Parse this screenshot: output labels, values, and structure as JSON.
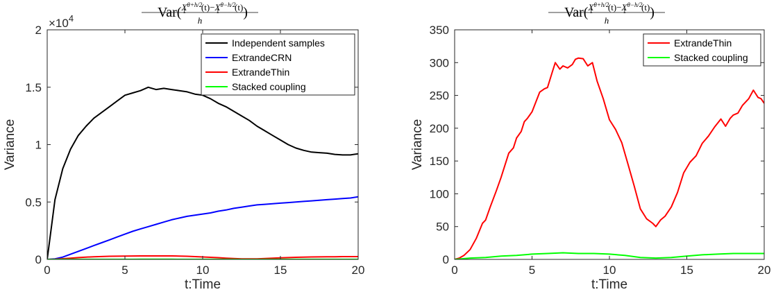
{
  "chart_data": [
    {
      "type": "line",
      "title": {
        "func": "Var",
        "open": "(",
        "num_a": "X",
        "num_a_sub": "1",
        "num_a_sup": "θ+h/2",
        "num_a_arg": "(t)",
        "minus": "−",
        "num_b": "X",
        "num_b_sub": "1",
        "num_b_sup": "θ−h/2",
        "num_b_arg": "(t)",
        "den": "h",
        "close": ")"
      },
      "xlabel": "t:Time",
      "ylabel": "Variance",
      "xlim": [
        0,
        20
      ],
      "ylim": [
        0,
        20000
      ],
      "xticks": [
        0,
        5,
        10,
        15,
        20
      ],
      "xtick_labels": [
        "0",
        "5",
        "10",
        "15",
        "20"
      ],
      "yticks": [
        0,
        5000,
        10000,
        15000,
        20000
      ],
      "ytick_labels": [
        "0",
        "0.5",
        "1",
        "1.5",
        "2"
      ],
      "y_exponent": {
        "base": "×10",
        "power": "4"
      },
      "legend_position": "top-right",
      "x": [
        0,
        0.5,
        1,
        1.5,
        2,
        2.5,
        3,
        3.5,
        4,
        4.5,
        5,
        5.5,
        6,
        6.5,
        7,
        7.5,
        8,
        8.5,
        9,
        9.5,
        10,
        10.5,
        11,
        11.5,
        12,
        12.5,
        13,
        13.5,
        14,
        14.5,
        15,
        15.5,
        16,
        16.5,
        17,
        17.5,
        18,
        18.5,
        19,
        19.5,
        20
      ],
      "series": [
        {
          "name": "Independent samples",
          "color": "#000000",
          "values": [
            0,
            5200,
            7900,
            9600,
            10800,
            11600,
            12300,
            12800,
            13300,
            13800,
            14300,
            14500,
            14700,
            15000,
            14800,
            14900,
            14800,
            14700,
            14600,
            14400,
            14300,
            14000,
            13600,
            13300,
            12900,
            12500,
            12100,
            11600,
            11200,
            10800,
            10400,
            10000,
            9700,
            9500,
            9350,
            9300,
            9250,
            9150,
            9100,
            9100,
            9200
          ]
        },
        {
          "name": "ExtrandeCRN",
          "color": "#0000ff",
          "values": [
            0,
            50,
            200,
            450,
            700,
            950,
            1200,
            1450,
            1700,
            1950,
            2200,
            2450,
            2650,
            2850,
            3050,
            3250,
            3450,
            3600,
            3750,
            3850,
            3950,
            4050,
            4200,
            4300,
            4450,
            4550,
            4650,
            4750,
            4800,
            4850,
            4900,
            4950,
            5000,
            5050,
            5100,
            5150,
            5200,
            5250,
            5300,
            5350,
            5450
          ]
        },
        {
          "name": "ExtrandeThin",
          "color": "#ff0000",
          "values": [
            0,
            20,
            60,
            110,
            160,
            200,
            230,
            250,
            270,
            280,
            290,
            295,
            300,
            305,
            305,
            300,
            300,
            290,
            270,
            240,
            210,
            180,
            150,
            110,
            70,
            50,
            40,
            50,
            70,
            110,
            140,
            160,
            180,
            200,
            210,
            220,
            225,
            230,
            240,
            240,
            240
          ]
        },
        {
          "name": "Stacked coupling",
          "color": "#00ff00",
          "values": [
            0,
            2,
            4,
            5,
            6,
            7,
            8,
            8,
            9,
            9,
            9,
            9,
            10,
            10,
            10,
            10,
            10,
            9,
            9,
            8,
            8,
            7,
            6,
            5,
            4,
            3,
            3,
            3,
            4,
            5,
            6,
            7,
            8,
            8,
            9,
            9,
            9,
            9,
            9,
            9,
            8
          ]
        }
      ]
    },
    {
      "type": "line",
      "title": {
        "func": "Var",
        "open": "(",
        "num_a": "X",
        "num_a_sub": "1",
        "num_a_sup": "θ+h/2",
        "num_a_arg": "(t)",
        "minus": "−",
        "num_b": "X",
        "num_b_sub": "1",
        "num_b_sup": "θ−h/2",
        "num_b_arg": "(t)",
        "den": "h",
        "close": ")"
      },
      "xlabel": "t:Time",
      "ylabel": "Variance",
      "xlim": [
        0,
        20
      ],
      "ylim": [
        0,
        350
      ],
      "xticks": [
        0,
        5,
        10,
        15,
        20
      ],
      "xtick_labels": [
        "0",
        "5",
        "10",
        "15",
        "20"
      ],
      "yticks": [
        0,
        50,
        100,
        150,
        200,
        250,
        300,
        350
      ],
      "ytick_labels": [
        "0",
        "50",
        "100",
        "150",
        "200",
        "250",
        "300",
        "350"
      ],
      "legend_position": "top-right",
      "series": [
        {
          "name": "ExtrandeThin",
          "color": "#ff0000",
          "x": [
            0,
            0.3,
            0.6,
            1,
            1.4,
            1.8,
            2,
            2.3,
            2.7,
            3,
            3.5,
            3.8,
            4,
            4.3,
            4.5,
            4.7,
            5,
            5.5,
            5.8,
            6,
            6.3,
            6.5,
            6.8,
            7,
            7.3,
            7.6,
            7.8,
            8,
            8.3,
            8.6,
            8.9,
            9.2,
            9.6,
            10,
            10.4,
            10.8,
            11.2,
            11.6,
            12,
            12.4,
            12.8,
            13,
            13.3,
            13.6,
            14,
            14.4,
            14.8,
            15.2,
            15.6,
            16,
            16.4,
            16.8,
            17.2,
            17.5,
            17.8,
            18,
            18.3,
            18.6,
            19,
            19.3,
            19.6,
            19.8,
            20
          ],
          "y": [
            0,
            2,
            6,
            15,
            32,
            55,
            60,
            80,
            105,
            125,
            162,
            170,
            185,
            195,
            210,
            215,
            225,
            255,
            260,
            262,
            285,
            300,
            290,
            295,
            292,
            297,
            305,
            307,
            306,
            295,
            300,
            272,
            245,
            213,
            198,
            178,
            145,
            112,
            77,
            62,
            55,
            50,
            60,
            66,
            80,
            102,
            132,
            148,
            158,
            177,
            188,
            202,
            214,
            203,
            215,
            220,
            223,
            235,
            245,
            258,
            247,
            245,
            238
          ]
        },
        {
          "name": "Stacked coupling",
          "color": "#00ff00",
          "x": [
            0,
            1,
            2,
            3,
            4,
            5,
            6,
            7,
            8,
            9,
            10,
            11,
            12,
            13,
            14,
            15,
            16,
            17,
            18,
            19,
            20
          ],
          "y": [
            0,
            2,
            3,
            5,
            6,
            8,
            9,
            10,
            9,
            9,
            8,
            6,
            3,
            2,
            3,
            5,
            7,
            8,
            9,
            9,
            9
          ]
        }
      ]
    }
  ]
}
